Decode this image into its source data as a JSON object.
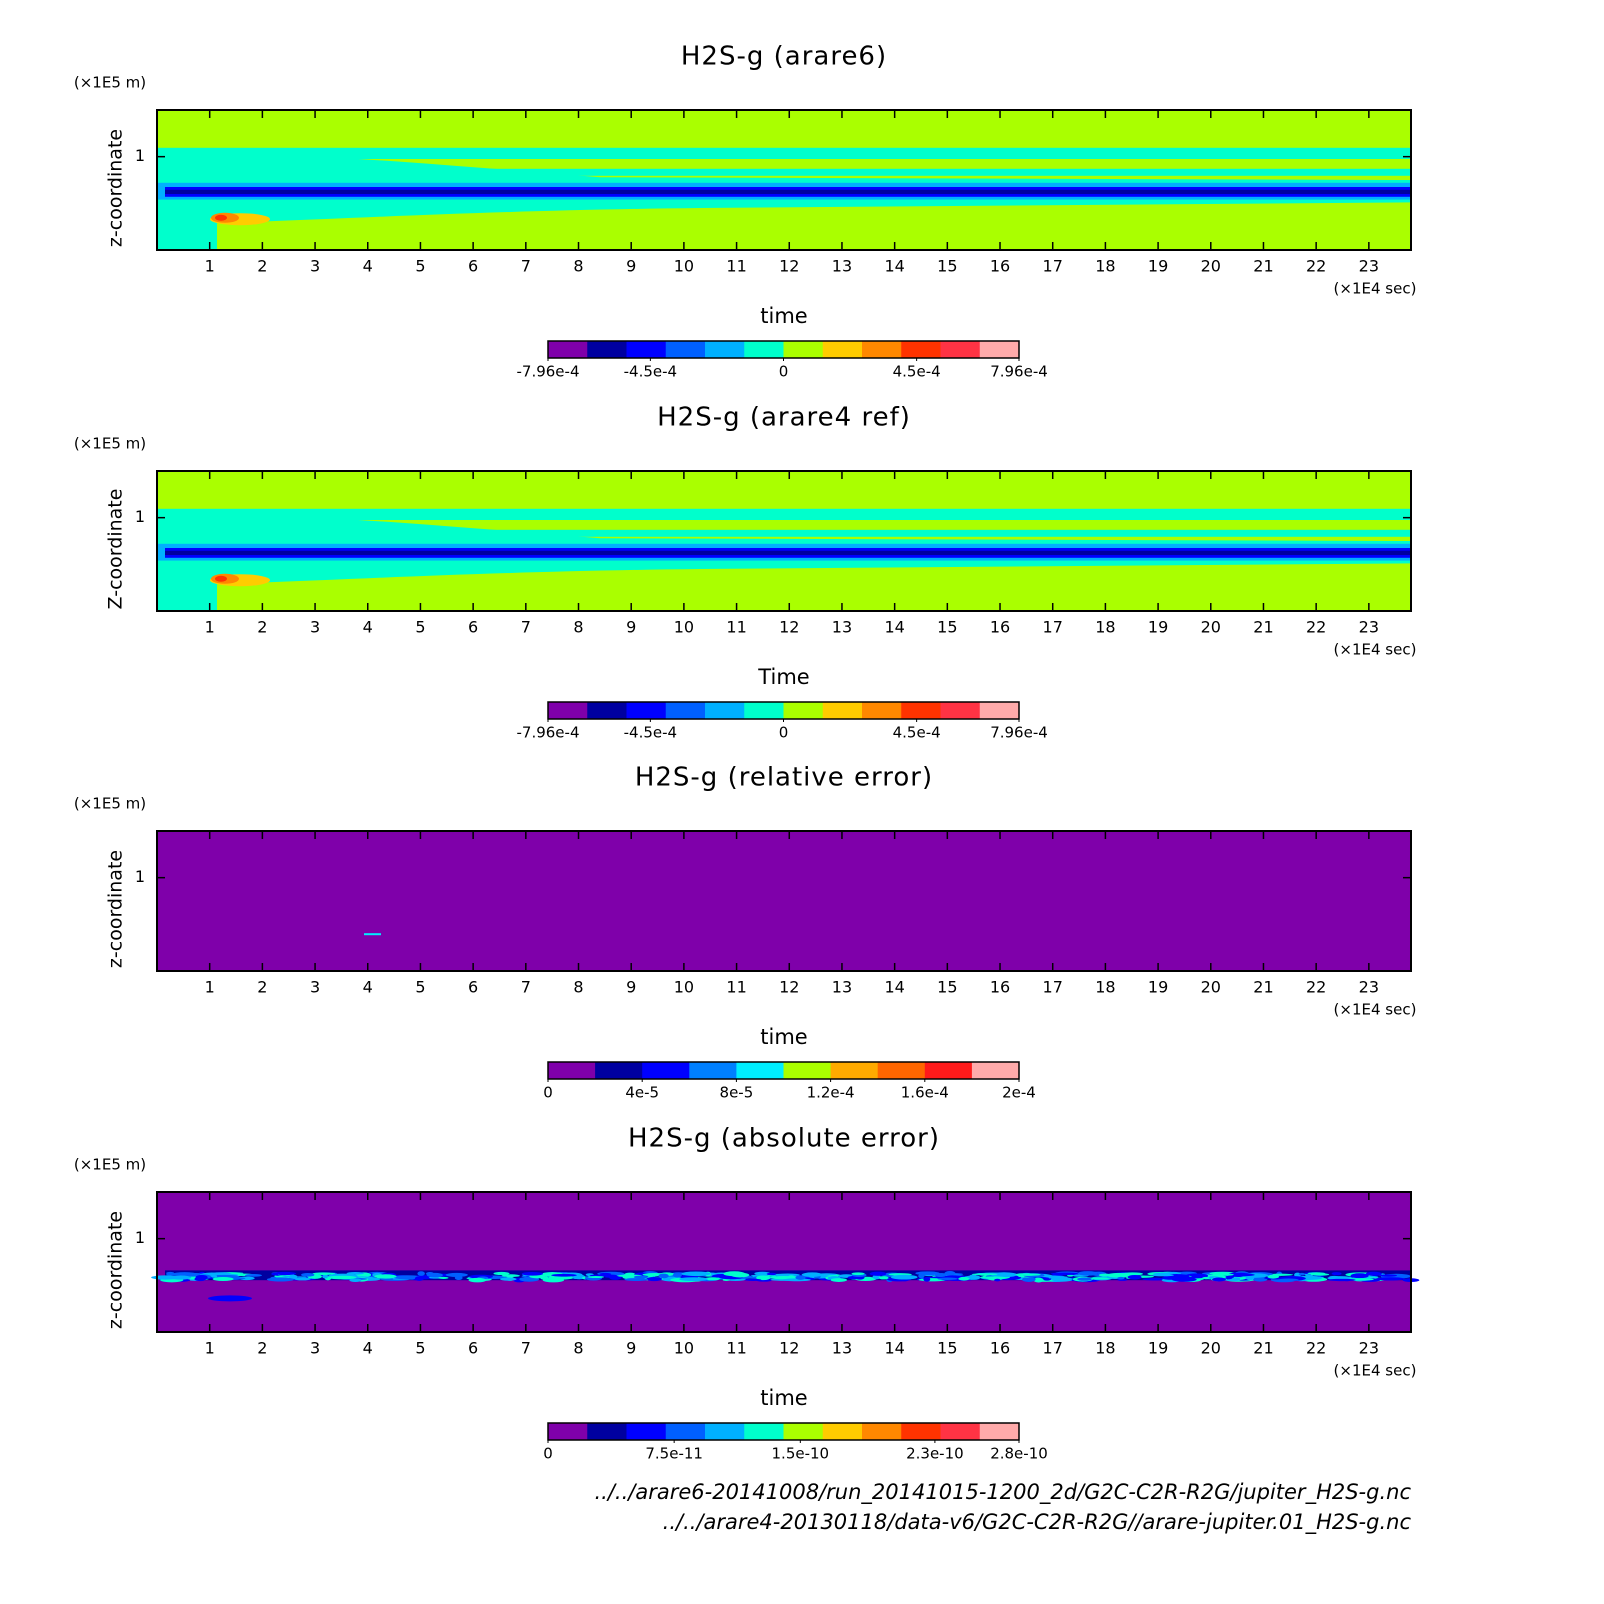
{
  "chart_data": [
    {
      "type": "contour",
      "title": "H2S-g (arare6)",
      "xlabel": "time",
      "ylabel": "z-coordinate",
      "xunit": "(×1E4 sec)",
      "yunit": "(×1E5 m)",
      "xlim": [
        0,
        23.8
      ],
      "xticks": [
        1,
        2,
        3,
        4,
        5,
        6,
        7,
        8,
        9,
        10,
        11,
        12,
        13,
        14,
        15,
        16,
        17,
        18,
        19,
        20,
        21,
        22,
        23
      ],
      "ylim": [
        0,
        1.5
      ],
      "yticks": [
        1
      ],
      "field": "mixing",
      "colorbar": {
        "lim": [
          -0.000796,
          0.000796
        ],
        "colors": [
          "#7f00aa",
          "#0000a0",
          "#0000ff",
          "#0060ff",
          "#00b0ff",
          "#00ffcc",
          "#aaff00",
          "#ffcc00",
          "#ff8800",
          "#ff3300",
          "#ff3344",
          "#ffaaaa"
        ],
        "ticks": [
          {
            "value": -0.000796,
            "label": "-7.96e-4"
          },
          {
            "value": -0.00045,
            "label": "-4.5e-4"
          },
          0,
          {
            "value": 0.00045,
            "label": "4.5e-4"
          },
          {
            "value": 0.000796,
            "label": "7.96e-4"
          }
        ]
      }
    },
    {
      "type": "contour",
      "title": "H2S-g (arare4 ref)",
      "xlabel": "Time",
      "ylabel": "Z-coordinate",
      "xunit": "(×1E4 sec)",
      "yunit": "(×1E5 m)",
      "xlim": [
        0,
        23.8
      ],
      "xticks": [
        1,
        2,
        3,
        4,
        5,
        6,
        7,
        8,
        9,
        10,
        11,
        12,
        13,
        14,
        15,
        16,
        17,
        18,
        19,
        20,
        21,
        22,
        23
      ],
      "ylim": [
        0,
        1.5
      ],
      "yticks": [
        1
      ],
      "field": "mixing",
      "colorbar": {
        "lim": [
          -0.000796,
          0.000796
        ],
        "colors": [
          "#7f00aa",
          "#0000a0",
          "#0000ff",
          "#0060ff",
          "#00b0ff",
          "#00ffcc",
          "#aaff00",
          "#ffcc00",
          "#ff8800",
          "#ff3300",
          "#ff3344",
          "#ffaaaa"
        ],
        "ticks": [
          {
            "value": -0.000796,
            "label": "-7.96e-4"
          },
          {
            "value": -0.00045,
            "label": "-4.5e-4"
          },
          0,
          {
            "value": 0.00045,
            "label": "4.5e-4"
          },
          {
            "value": 0.000796,
            "label": "7.96e-4"
          }
        ]
      }
    },
    {
      "type": "contour",
      "title": "H2S-g (relative error)",
      "xlabel": "time",
      "ylabel": "z-coordinate",
      "xunit": "(×1E4 sec)",
      "yunit": "(×1E5 m)",
      "xlim": [
        0,
        23.8
      ],
      "xticks": [
        1,
        2,
        3,
        4,
        5,
        6,
        7,
        8,
        9,
        10,
        11,
        12,
        13,
        14,
        15,
        16,
        17,
        18,
        19,
        20,
        21,
        22,
        23
      ],
      "ylim": [
        0,
        1.5
      ],
      "yticks": [
        1
      ],
      "field": "flat",
      "colorbar": {
        "lim": [
          0,
          0.0002
        ],
        "colors": [
          "#7f00aa",
          "#0000a0",
          "#0000ff",
          "#0080ff",
          "#00eeff",
          "#aaff00",
          "#ffaa00",
          "#ff6600",
          "#ff1a1a",
          "#ffaaaa"
        ],
        "ticks": [
          0,
          {
            "value": 4e-05,
            "label": "4e-5"
          },
          {
            "value": 8e-05,
            "label": "8e-5"
          },
          {
            "value": 0.00012,
            "label": "1.2e-4"
          },
          {
            "value": 0.00016,
            "label": "1.6e-4"
          },
          {
            "value": 0.0002,
            "label": "2e-4"
          }
        ]
      }
    },
    {
      "type": "contour",
      "title": "H2S-g (absolute error)",
      "xlabel": "time",
      "ylabel": "z-coordinate",
      "xunit": "(×1E4 sec)",
      "yunit": "(×1E5 m)",
      "xlim": [
        0,
        23.8
      ],
      "xticks": [
        1,
        2,
        3,
        4,
        5,
        6,
        7,
        8,
        9,
        10,
        11,
        12,
        13,
        14,
        15,
        16,
        17,
        18,
        19,
        20,
        21,
        22,
        23
      ],
      "ylim": [
        0,
        1.5
      ],
      "yticks": [
        1
      ],
      "field": "noise",
      "colorbar": {
        "lim": [
          0,
          2.8e-10
        ],
        "colors": [
          "#7f00aa",
          "#0000a0",
          "#0000ff",
          "#0060ff",
          "#00b0ff",
          "#00ffcc",
          "#aaff00",
          "#ffcc00",
          "#ff8800",
          "#ff3300",
          "#ff3344",
          "#ffaaaa"
        ],
        "ticks": [
          0,
          {
            "value": 7.5e-11,
            "label": "7.5e-11"
          },
          {
            "value": 1.5e-10,
            "label": "1.5e-10"
          },
          {
            "value": 2.3e-10,
            "label": "2.3e-10"
          },
          {
            "value": 2.8e-10,
            "label": "2.8e-10"
          }
        ]
      }
    }
  ],
  "footnotes": [
    "../../arare6-20141008/run_20141015-1200_2d/G2C-C2R-R2G/jupiter_H2S-g.nc",
    "../../arare4-20130118/data-v6/G2C-C2R-R2G//arare-jupiter.01_H2S-g.nc"
  ]
}
